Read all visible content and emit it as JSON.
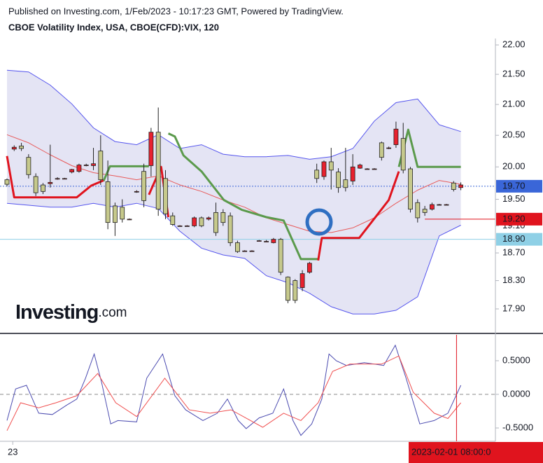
{
  "watermark": {
    "brand": "Investing",
    "suffix": ".com"
  },
  "chart_data": [
    {
      "type": "candlestick",
      "source": "Published on Investing.com, 1/Feb/2023 - 10:17:23 GMT, Powered by TradingView.",
      "title": "CBOE Volatility Index, USA, CBOE(CFD):VIX, 120",
      "log_scale": true,
      "xlim": [
        -0.97,
        67.8
      ],
      "ylim": [
        17.57,
        22.11
      ],
      "yticks": [
        {
          "value": 22.0,
          "label": "22.00"
        },
        {
          "value": 21.5,
          "label": "21.50"
        },
        {
          "value": 21.0,
          "label": "21.00"
        },
        {
          "value": 20.5,
          "label": "20.50"
        },
        {
          "value": 20.0,
          "label": "20.00"
        },
        {
          "value": 19.5,
          "label": "19.50"
        },
        {
          "value": 19.1,
          "label": "19.10"
        },
        {
          "value": 18.7,
          "label": "18.70"
        },
        {
          "value": 18.3,
          "label": "18.30"
        },
        {
          "value": 17.9,
          "label": "17.90"
        }
      ],
      "up_color": "#e8212e",
      "down_color": "#c6c98c",
      "x": [
        0,
        1,
        2,
        3,
        4,
        5,
        6,
        7,
        8,
        9,
        10,
        11,
        12,
        13,
        14,
        15,
        16,
        17,
        18,
        19,
        20,
        21,
        22,
        23,
        24,
        25,
        26,
        27,
        28,
        29,
        30,
        31,
        32,
        33,
        34,
        35,
        36,
        37,
        38,
        39,
        40,
        41,
        42,
        43,
        44,
        45,
        46,
        47,
        48,
        49,
        50,
        51,
        52,
        53,
        54,
        55,
        56,
        57,
        58,
        59,
        60,
        61,
        62,
        63
      ],
      "open": [
        19.8,
        20.28,
        20.33,
        20.15,
        19.85,
        19.72,
        19.74,
        19.81,
        19.82,
        19.92,
        19.93,
        20.03,
        20.02,
        20.25,
        19.77,
        19.4,
        19.38,
        19.2,
        19.62,
        19.93,
        20.02,
        20.55,
        19.82,
        19.25,
        19.1,
        19.1,
        19.1,
        19.22,
        19.2,
        19.3,
        19.3,
        19.25,
        18.85,
        18.73,
        18.73,
        18.88,
        18.87,
        18.85,
        18.9,
        18.35,
        18.3,
        18.2,
        18.42,
        19.95,
        19.85,
        20.08,
        19.92,
        19.8,
        19.78,
        19.98,
        19.97,
        19.97,
        20.38,
        20.3,
        20.35,
        20.45,
        19.97,
        19.45,
        19.35,
        19.35,
        19.42,
        19.42,
        19.75,
        19.68
      ],
      "high": [
        19.82,
        20.34,
        20.38,
        20.2,
        19.9,
        19.75,
        20.35,
        19.84,
        19.83,
        19.97,
        20.05,
        20.05,
        20.3,
        20.5,
        20.1,
        19.45,
        19.5,
        19.21,
        19.64,
        20.05,
        20.62,
        20.95,
        19.95,
        19.3,
        19.11,
        19.11,
        19.24,
        19.24,
        19.24,
        19.45,
        19.35,
        19.3,
        18.88,
        18.74,
        18.74,
        18.89,
        18.89,
        18.92,
        18.92,
        18.36,
        18.32,
        18.45,
        18.57,
        20.05,
        20.1,
        20.3,
        19.98,
        20.3,
        20.2,
        20.05,
        19.98,
        19.98,
        20.4,
        20.32,
        20.72,
        20.7,
        20.0,
        19.5,
        19.4,
        19.45,
        19.43,
        19.43,
        19.78,
        19.76
      ],
      "low": [
        19.7,
        20.25,
        20.25,
        19.82,
        19.55,
        19.58,
        19.68,
        19.8,
        19.81,
        19.9,
        19.91,
        20.01,
        19.95,
        19.72,
        19.05,
        18.95,
        19.15,
        19.19,
        19.6,
        19.38,
        19.85,
        19.25,
        19.2,
        19.1,
        19.09,
        19.09,
        19.08,
        19.08,
        19.18,
        18.95,
        19.1,
        18.8,
        18.7,
        18.72,
        18.72,
        18.87,
        18.86,
        18.84,
        18.38,
        17.98,
        17.98,
        18.15,
        18.4,
        19.75,
        19.8,
        19.65,
        19.6,
        19.62,
        19.72,
        19.97,
        19.96,
        19.96,
        20.1,
        20.28,
        20.3,
        19.9,
        19.3,
        19.15,
        19.25,
        19.33,
        19.41,
        19.41,
        19.62,
        19.64
      ],
      "close": [
        19.73,
        20.31,
        20.29,
        19.88,
        19.6,
        19.62,
        19.76,
        19.82,
        19.82,
        19.96,
        20.03,
        20.03,
        20.05,
        19.8,
        19.15,
        19.15,
        19.2,
        19.2,
        19.62,
        19.48,
        20.55,
        19.35,
        19.28,
        19.12,
        19.1,
        19.1,
        19.22,
        19.1,
        19.22,
        19.0,
        19.15,
        18.85,
        18.72,
        18.73,
        18.73,
        18.88,
        18.87,
        18.9,
        18.42,
        18.02,
        18.02,
        18.4,
        18.55,
        19.82,
        20.08,
        19.95,
        19.68,
        19.68,
        20.0,
        20.03,
        19.97,
        19.97,
        20.15,
        20.3,
        20.6,
        19.95,
        19.35,
        19.22,
        19.3,
        19.42,
        19.42,
        19.42,
        19.65,
        19.72
      ],
      "bands": {
        "color": "#5555ee",
        "fill": "#e4e4f4",
        "x": [
          0,
          3,
          6,
          9,
          12,
          15,
          18,
          21,
          24,
          27,
          30,
          33,
          36,
          39,
          42,
          45,
          48,
          51,
          54,
          57,
          60,
          63
        ],
        "upper": [
          21.57,
          21.54,
          21.32,
          21.01,
          20.62,
          20.4,
          20.35,
          20.51,
          20.29,
          20.35,
          20.2,
          20.16,
          20.16,
          20.18,
          20.12,
          20.16,
          20.29,
          20.73,
          21.03,
          21.09,
          20.67,
          20.56
        ],
        "lower": [
          19.44,
          19.41,
          19.38,
          19.38,
          19.44,
          19.38,
          19.44,
          19.36,
          19.02,
          18.77,
          18.67,
          18.62,
          18.37,
          18.27,
          18.12,
          17.93,
          17.83,
          17.83,
          17.88,
          18.07,
          18.95,
          19.11
        ]
      },
      "lines": [
        {
          "color": "#e85a5a",
          "width": 1,
          "x": [
            0,
            3,
            6,
            9,
            12,
            15,
            18,
            21,
            24,
            27,
            30,
            33,
            36,
            39,
            42,
            45,
            48,
            51,
            54,
            57,
            60,
            63
          ],
          "values": [
            20.51,
            20.38,
            20.19,
            20.02,
            19.91,
            19.86,
            19.8,
            19.86,
            19.72,
            19.62,
            19.49,
            19.38,
            19.22,
            19.12,
            19.02,
            19.0,
            19.07,
            19.22,
            19.44,
            19.64,
            19.79,
            19.73
          ]
        },
        {
          "color": "#5b9a4c",
          "width": 3,
          "x": [
            13.4,
            14.3,
            19.7,
            20,
            22.4,
            23.3,
            24.5,
            27,
            30.1,
            32.6,
            36,
            38.4,
            39.7,
            40.8,
            43.2,
            44,
            54.4,
            55.7,
            57,
            63
          ],
          "values": [
            19.78,
            20.01,
            20.01,
            null,
            20.53,
            20.48,
            20.18,
            19.93,
            19.49,
            19.34,
            19.23,
            19.18,
            18.87,
            18.61,
            18.61,
            null,
            20.0,
            20.59,
            20.0,
            20.0
          ]
        },
        {
          "color": "#e0141e",
          "width": 3,
          "x": [
            0,
            1,
            9.7,
            11.7,
            13.4,
            14,
            19.7,
            21.4,
            22.4,
            23,
            43.2,
            43.7,
            48.9,
            51.5,
            53,
            54.4
          ],
          "values": [
            20.17,
            19.53,
            19.53,
            19.71,
            19.79,
            null,
            19.57,
            20.0,
            19.23,
            null,
            18.59,
            18.92,
            18.92,
            19.28,
            19.49,
            19.93
          ]
        }
      ],
      "price_lines": [
        {
          "value": 19.7,
          "label": "19.70",
          "color": "#3a66d8",
          "text_color": "#ffffff",
          "dash": true
        },
        {
          "value": 19.2,
          "label": "19.20",
          "color": "#e0141e",
          "text_color": "#ffffff",
          "x_start": 58
        },
        {
          "value": 18.9,
          "label": "18.90",
          "color": "#8fd0e6",
          "text_color": "#131722"
        }
      ]
    },
    {
      "type": "line",
      "xlim": [
        -0.97,
        67.8
      ],
      "ylim": [
        -0.698,
        0.885
      ],
      "yticks": [
        {
          "value": 0.5,
          "label": "0.5000"
        },
        {
          "value": 0,
          "label": "0.0000"
        },
        {
          "value": -0.5,
          "label": "-0.5000"
        }
      ],
      "xticks": [
        {
          "value": 0.8,
          "label": "23"
        }
      ],
      "series": [
        {
          "color": "#4b4bb0",
          "x": [
            0,
            1.2,
            2.7,
            4.4,
            6.3,
            8.3,
            9.7,
            10.9,
            12.1,
            13.1,
            14.4,
            15.4,
            18,
            19.4,
            21.6,
            23.3,
            24.8,
            27.2,
            29.2,
            30.6,
            32.1,
            33.2,
            35,
            36.9,
            38.4,
            39.7,
            40.8,
            42.3,
            43.7,
            44.7,
            45.7,
            47.1,
            49.6,
            52.3,
            53.9,
            55.4,
            57.3,
            59.3,
            61.2,
            63
          ],
          "values": [
            -0.39,
            0.08,
            0.135,
            -0.28,
            -0.3,
            -0.16,
            -0.07,
            0.24,
            0.6,
            0.19,
            -0.44,
            -0.39,
            -0.41,
            0.24,
            0.6,
            -0.02,
            -0.23,
            -0.39,
            -0.28,
            -0.07,
            -0.39,
            -0.51,
            -0.35,
            -0.28,
            0.08,
            -0.39,
            -0.61,
            -0.44,
            -0.07,
            0.6,
            0.5,
            0.43,
            0.47,
            0.43,
            0.73,
            0.24,
            -0.44,
            -0.39,
            -0.28,
            0.135
          ]
        },
        {
          "color": "#f05050",
          "x": [
            0,
            1.9,
            4.4,
            6.8,
            9.7,
            12.6,
            15.1,
            18,
            21.9,
            25.3,
            28.2,
            31.1,
            35.5,
            38.4,
            40.8,
            43.2,
            45.2,
            47.6,
            52,
            54.4,
            56.4,
            59.3,
            61.2,
            63
          ],
          "values": [
            -0.54,
            -0.125,
            -0.2,
            -0.125,
            -0.02,
            0.31,
            -0.125,
            -0.33,
            0.24,
            -0.23,
            -0.28,
            -0.23,
            -0.49,
            -0.28,
            -0.39,
            -0.125,
            0.34,
            0.45,
            0.45,
            0.57,
            0.03,
            -0.28,
            -0.36,
            -0.125
          ]
        }
      ],
      "cursor": {
        "x": 62.4,
        "label": "2023-02-01 08:00:0",
        "color": "#e0141e"
      }
    }
  ]
}
